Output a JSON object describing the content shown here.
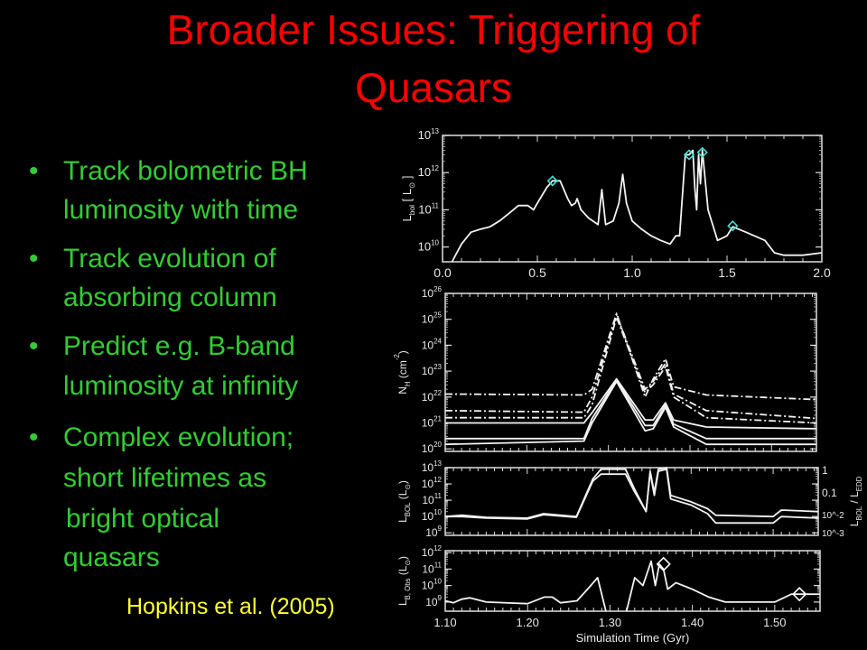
{
  "slide": {
    "title_line1": "Broader Issues: Triggering of",
    "title_line2": "Quasars",
    "bullets": [
      {
        "lines": [
          "Track bolometric BH",
          "luminosity with time"
        ]
      },
      {
        "lines": [
          "Track evolution of",
          "absorbing column"
        ]
      },
      {
        "lines": [
          "Predict e.g. B-band",
          "luminosity at infinity"
        ]
      },
      {
        "lines": [
          "Complex evolution;",
          "short lifetimes as",
          "bright optical",
          "quasars"
        ]
      }
    ],
    "bullet_glyph": "•",
    "citation": "Hopkins et al. (2005)",
    "colors": {
      "title": "#ff0000",
      "bullets": "#33cc33",
      "citation": "#ffff33",
      "background": "#000000",
      "marker": "#40e0d0"
    }
  },
  "chart_data": [
    {
      "type": "line",
      "ylabel": {
        "main": "L",
        "sub": "bol",
        "mid": " [ L",
        "sub2": "⊙",
        "end": " ]"
      },
      "xlim": [
        0,
        2
      ],
      "ylim": [
        4000000000.0,
        10000000000000.0
      ],
      "yscale": "log",
      "xticks": [
        "0.0",
        "0.5",
        "1.0",
        "1.5",
        "2.0"
      ],
      "yticks_exp": [
        10,
        11,
        12,
        13
      ],
      "series": [
        {
          "style": "solid",
          "x": [
            0.05,
            0.1,
            0.15,
            0.2,
            0.25,
            0.3,
            0.35,
            0.4,
            0.45,
            0.48,
            0.5,
            0.55,
            0.58,
            0.62,
            0.66,
            0.68,
            0.7,
            0.71,
            0.73,
            0.77,
            0.82,
            0.84,
            0.86,
            0.9,
            0.93,
            0.95,
            0.97,
            1.0,
            1.05,
            1.1,
            1.15,
            1.2,
            1.23,
            1.25,
            1.28,
            1.3,
            1.32,
            1.33,
            1.34,
            1.35,
            1.36,
            1.37,
            1.4,
            1.45,
            1.5,
            1.53,
            1.6,
            1.7,
            1.75,
            1.8,
            1.9,
            2.0
          ],
          "y": [
            4000000000.0,
            12000000000.0,
            25000000000.0,
            30000000000.0,
            35000000000.0,
            50000000000.0,
            80000000000.0,
            130000000000.0,
            130000000000.0,
            100000000000.0,
            150000000000.0,
            400000000000.0,
            600000000000.0,
            600000000000.0,
            200000000000.0,
            130000000000.0,
            150000000000.0,
            200000000000.0,
            100000000000.0,
            60000000000.0,
            40000000000.0,
            350000000000.0,
            40000000000.0,
            50000000000.0,
            150000000000.0,
            900000000000.0,
            150000000000.0,
            50000000000.0,
            30000000000.0,
            20000000000.0,
            15000000000.0,
            12000000000.0,
            20000000000.0,
            20000000000.0,
            3000000000000.0,
            3000000000000.0,
            4000000000000.0,
            400000000000.0,
            100000000000.0,
            3000000000000.0,
            500000000000.0,
            4000000000000.0,
            100000000000.0,
            15000000000.0,
            20000000000.0,
            35000000000.0,
            25000000000.0,
            15000000000.0,
            7000000000.0,
            6000000000.0,
            6000000000.0,
            7000000000.0
          ]
        }
      ],
      "markers": {
        "shape": "diamond",
        "color": "#40e0d0",
        "x": [
          0.58,
          1.3,
          1.37,
          1.53
        ],
        "y": [
          600000000000.0,
          3000000000000.0,
          3500000000000.0,
          37000000000.0
        ]
      }
    },
    {
      "type": "line",
      "ylabel": {
        "main": "N",
        "sub": "H",
        "mid": " (cm",
        "sup": "-2",
        "end": ")"
      },
      "xlim": [
        1.1,
        1.555
      ],
      "ylim": [
        8e+19,
        1e+26
      ],
      "yscale": "log",
      "yticks_exp": [
        20,
        21,
        22,
        23,
        24,
        25,
        26
      ],
      "x": [
        1.1,
        1.27,
        1.28,
        1.31,
        1.345,
        1.355,
        1.37,
        1.38,
        1.42,
        1.555
      ],
      "series": [
        {
          "style": "dashdot",
          "y": [
            1.3e+22,
            1.2e+22,
            2e+22,
            1.7e+25,
            1e+22,
            5e+22,
            3e+23,
            2.5e+22,
            1.2e+22,
            8e+21
          ]
        },
        {
          "style": "dashdot",
          "y": [
            3e+21,
            2.6e+21,
            1e+22,
            1.5e+25,
            2e+22,
            4e+22,
            2e+23,
            1.3e+22,
            3e+21,
            1.5e+21
          ]
        },
        {
          "style": "dashdot",
          "y": [
            1.6e+21,
            1.6e+21,
            5e+21,
            1.2e+25,
            1.5e+22,
            3e+22,
            1.5e+23,
            1e+22,
            1.6e+21,
            1e+21
          ]
        },
        {
          "style": "solid",
          "y": [
            1e+21,
            1e+21,
            2.5e+21,
            5e+22,
            1.3e+21,
            1.3e+21,
            6e+21,
            1.3e+21,
            7e+20,
            6e+20
          ]
        },
        {
          "style": "solid",
          "y": [
            2.5e+20,
            2.5e+20,
            1.5e+21,
            4.5e+22,
            8e+20,
            8e+20,
            5e+21,
            9e+20,
            2.5e+20,
            2.5e+20
          ]
        },
        {
          "style": "solid",
          "y": [
            1.5e+20,
            2e+20,
            1e+21,
            4e+22,
            5e+20,
            6e+20,
            4e+21,
            7e+20,
            1.5e+20,
            1.5e+20
          ]
        }
      ]
    },
    {
      "type": "line",
      "ylabel": {
        "main": "L",
        "sub": "BOL",
        "mid": " (L",
        "sub2": "⊙",
        "end": ")"
      },
      "ylabel_right": {
        "main": "L",
        "sub": "BOL",
        "mid": " / L",
        "sub2": "EDD",
        "end": ""
      },
      "xlim": [
        1.1,
        1.555
      ],
      "ylim": [
        700000000.0,
        10000000000000.0
      ],
      "yscale": "log",
      "yticks_exp": [
        9,
        10,
        11,
        12,
        13
      ],
      "yticks_right": [
        "1",
        "0.1",
        "10^-2",
        "10^-3"
      ],
      "x": [
        1.1,
        1.12,
        1.15,
        1.2,
        1.22,
        1.26,
        1.28,
        1.29,
        1.32,
        1.33,
        1.345,
        1.35,
        1.355,
        1.36,
        1.37,
        1.375,
        1.4,
        1.42,
        1.43,
        1.5,
        1.51,
        1.555
      ],
      "series": [
        {
          "style": "solid",
          "y": [
            10000000000.0,
            12000000000.0,
            9000000000.0,
            8000000000.0,
            15000000000.0,
            10000000000.0,
            2000000000000.0,
            8000000000000.0,
            8000000000000.0,
            600000000000.0,
            20000000000.0,
            6000000000000.0,
            300000000000.0,
            8000000000000.0,
            10000000000000.0,
            200000000000.0,
            80000000000.0,
            30000000000.0,
            12000000000.0,
            10000000000.0,
            25000000000.0,
            20000000000.0
          ]
        },
        {
          "style": "solid",
          "y": [
            10000000000.0,
            10000000000.0,
            8000000000.0,
            7000000000.0,
            13000000000.0,
            9000000000.0,
            1500000000000.0,
            4000000000000.0,
            4000000000000.0,
            400000000000.0,
            20000000000.0,
            5000000000000.0,
            200000000000.0,
            6000000000000.0,
            8000000000000.0,
            120000000000.0,
            50000000000.0,
            15000000000.0,
            4000000000.0,
            4000000000.0,
            10000000000.0,
            8000000000.0
          ]
        }
      ]
    },
    {
      "type": "line",
      "ylabel": {
        "main": "L",
        "sub": "B, Obs",
        "mid": " (L",
        "sub2": "⊙",
        "end": ")"
      },
      "xlabel": "Simulation Time (Gyr)",
      "xlim": [
        1.1,
        1.555
      ],
      "ylim": [
        280000000.0,
        1300000000000.0
      ],
      "yscale": "log",
      "xticks": [
        "1.10",
        "1.20",
        "1.30",
        "1.40",
        "1.50"
      ],
      "yticks_exp": [
        9,
        10,
        11,
        12
      ],
      "series": [
        {
          "style": "solid",
          "x": [
            1.1,
            1.11,
            1.12,
            1.13,
            1.15,
            1.2,
            1.22,
            1.23,
            1.24,
            1.26,
            1.275,
            1.285,
            1.295
          ],
          "y": [
            1200000000.0,
            900000000.0,
            1500000000.0,
            1800000000.0,
            1000000000.0,
            800000000.0,
            2000000000.0,
            2000000000.0,
            900000000.0,
            1200000000.0,
            8000000000.0,
            30000000000.0,
            200000000.0
          ]
        },
        {
          "style": "solid",
          "x": [
            1.32,
            1.33,
            1.34,
            1.35,
            1.355,
            1.36,
            1.365,
            1.37,
            1.38,
            1.4,
            1.42,
            1.44,
            1.5,
            1.52,
            1.555
          ],
          "y": [
            200000000.0,
            30000000000.0,
            10000000000.0,
            300000000000.0,
            10000000000.0,
            200000000000.0,
            100000000000.0,
            6000000000.0,
            15000000000.0,
            6000000000.0,
            2000000000.0,
            1000000000.0,
            1000000000.0,
            3000000000.0,
            3000000000.0
          ]
        }
      ],
      "markers": {
        "shape": "diamond",
        "color": "#ffffff",
        "x": [
          1.365,
          1.53
        ],
        "y": [
          200000000000.0,
          3000000000.0
        ]
      }
    }
  ]
}
